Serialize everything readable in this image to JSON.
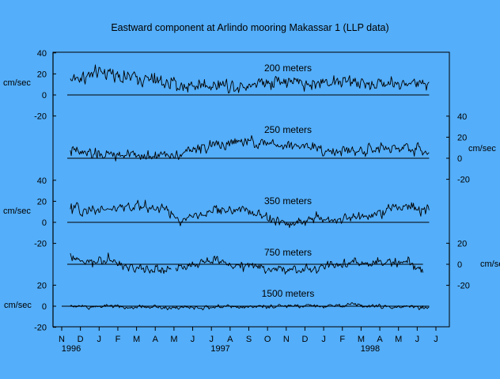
{
  "colors": {
    "background": "#54aef9",
    "ink": "#000000"
  },
  "chart_data": {
    "type": "line",
    "title": "Eastward component at Arlindo mooring Makassar 1 (LLP data)",
    "x_range": [
      "1996-11-01",
      "1998-07-01"
    ],
    "month_ticks": [
      "N",
      "D",
      "J",
      "F",
      "M",
      "A",
      "M",
      "J",
      "J",
      "A",
      "S",
      "O",
      "N",
      "D",
      "J",
      "F",
      "M",
      "A",
      "M",
      "J",
      "J"
    ],
    "year_labels": [
      {
        "label": "1996",
        "date": "1996-11-01"
      },
      {
        "label": "1997",
        "date": "1997-07-01"
      },
      {
        "label": "1998",
        "date": "1998-03-01"
      }
    ],
    "unit": "cm/sec",
    "panels": [
      {
        "name": "200 meters",
        "axis_side": "left",
        "ticks": [
          40,
          20,
          0,
          -20
        ],
        "unit_label": "cm/sec",
        "zero_line": [
          "1996-11-10",
          "1998-06-20"
        ],
        "segments": [
          {
            "start": "1996-11-15",
            "end": "1998-06-20",
            "knots": [
              [
                "1996-11-15",
                15
              ],
              [
                "1996-12-15",
                18
              ],
              [
                "1997-01-15",
                22
              ],
              [
                "1997-02-15",
                17
              ],
              [
                "1997-03-15",
                15
              ],
              [
                "1997-04-15",
                12
              ],
              [
                "1997-05-15",
                8
              ],
              [
                "1997-06-15",
                10
              ],
              [
                "1997-07-15",
                10
              ],
              [
                "1997-08-15",
                9
              ],
              [
                "1997-09-15",
                12
              ],
              [
                "1997-10-15",
                14
              ],
              [
                "1997-11-15",
                12
              ],
              [
                "1997-12-15",
                10
              ],
              [
                "1998-01-15",
                14
              ],
              [
                "1998-02-15",
                12
              ],
              [
                "1998-03-15",
                10
              ],
              [
                "1998-04-15",
                12
              ],
              [
                "1998-05-15",
                10
              ],
              [
                "1998-06-20",
                13
              ]
            ]
          }
        ]
      },
      {
        "name": "250 meters",
        "axis_side": "right",
        "ticks": [
          40,
          20,
          0,
          -20
        ],
        "unit_label": "cm/sec",
        "zero_line": [
          "1996-11-10",
          "1998-06-20"
        ],
        "segments": [
          {
            "start": "1996-11-15",
            "end": "1998-06-20",
            "knots": [
              [
                "1996-11-15",
                7
              ],
              [
                "1996-12-15",
                4
              ],
              [
                "1997-01-15",
                3
              ],
              [
                "1997-02-15",
                3
              ],
              [
                "1997-03-15",
                2
              ],
              [
                "1997-04-15",
                3
              ],
              [
                "1997-05-15",
                5
              ],
              [
                "1997-06-15",
                10
              ],
              [
                "1997-07-15",
                13
              ],
              [
                "1997-08-15",
                15
              ],
              [
                "1997-09-15",
                15
              ],
              [
                "1997-10-15",
                12
              ],
              [
                "1997-11-15",
                12
              ],
              [
                "1997-12-15",
                11
              ],
              [
                "1998-01-15",
                6
              ],
              [
                "1998-02-15",
                7
              ],
              [
                "1998-03-15",
                8
              ],
              [
                "1998-04-15",
                9
              ],
              [
                "1998-05-15",
                10
              ],
              [
                "1998-06-20",
                6
              ]
            ]
          }
        ]
      },
      {
        "name": "350 meters",
        "axis_side": "left",
        "ticks": [
          40,
          20,
          0,
          -20
        ],
        "unit_label": "cm/sec",
        "zero_line": [
          "1996-11-10",
          "1998-06-20"
        ],
        "segments": [
          {
            "start": "1996-11-15",
            "end": "1998-06-20",
            "knots": [
              [
                "1996-11-15",
                12
              ],
              [
                "1996-12-15",
                12
              ],
              [
                "1997-01-15",
                13
              ],
              [
                "1997-02-15",
                14
              ],
              [
                "1997-03-15",
                15
              ],
              [
                "1997-04-15",
                14
              ],
              [
                "1997-05-15",
                0
              ],
              [
                "1997-06-15",
                8
              ],
              [
                "1997-07-15",
                12
              ],
              [
                "1997-08-15",
                12
              ],
              [
                "1997-09-15",
                8
              ],
              [
                "1997-10-15",
                0
              ],
              [
                "1997-11-15",
                0
              ],
              [
                "1997-12-15",
                3
              ],
              [
                "1998-01-15",
                3
              ],
              [
                "1998-02-15",
                3
              ],
              [
                "1998-03-15",
                8
              ],
              [
                "1998-04-15",
                12
              ],
              [
                "1998-05-15",
                16
              ],
              [
                "1998-06-20",
                10
              ]
            ]
          }
        ]
      },
      {
        "name": "750 meters",
        "axis_side": "right",
        "ticks": [
          20,
          0,
          -20
        ],
        "unit_label": "cm/sec",
        "zero_line": [
          "1996-11-10",
          "1998-06-10"
        ],
        "segments": [
          {
            "start": "1996-11-15",
            "end": "1997-04-28",
            "knots": [
              [
                "1996-11-15",
                7
              ],
              [
                "1996-12-10",
                0
              ],
              [
                "1997-01-15",
                5
              ],
              [
                "1997-02-15",
                -3
              ],
              [
                "1997-03-15",
                -4
              ],
              [
                "1997-04-28",
                -6
              ]
            ]
          },
          {
            "start": "1997-05-05",
            "end": "1997-09-30",
            "knots": [
              [
                "1997-05-05",
                -5
              ],
              [
                "1997-06-15",
                1
              ],
              [
                "1997-07-15",
                3
              ],
              [
                "1997-08-15",
                -2
              ],
              [
                "1997-09-30",
                -3
              ]
            ]
          },
          {
            "start": "1997-10-01",
            "end": "1998-06-10",
            "knots": [
              [
                "1997-10-01",
                -4
              ],
              [
                "1997-11-15",
                -6
              ],
              [
                "1997-12-15",
                -4
              ],
              [
                "1998-01-15",
                -2
              ],
              [
                "1998-02-15",
                2
              ],
              [
                "1998-03-15",
                0
              ],
              [
                "1998-04-15",
                2
              ],
              [
                "1998-05-15",
                3
              ],
              [
                "1998-06-10",
                -7
              ]
            ]
          }
        ]
      },
      {
        "name": "1500 meters",
        "axis_side": "left",
        "ticks": [
          20,
          0,
          -20
        ],
        "unit_label": "cm/sec",
        "zero_line": [
          "1996-11-01",
          "1998-06-20"
        ],
        "segments": [
          {
            "start": "1996-11-15",
            "end": "1998-06-20",
            "knots": [
              [
                "1996-11-15",
                0
              ],
              [
                "1996-12-15",
                -1
              ],
              [
                "1997-01-15",
                1
              ],
              [
                "1997-02-15",
                -1
              ],
              [
                "1997-03-15",
                0
              ],
              [
                "1997-04-15",
                -1
              ],
              [
                "1997-05-15",
                -1
              ],
              [
                "1997-06-15",
                -2
              ],
              [
                "1997-07-15",
                0
              ],
              [
                "1997-08-15",
                -1
              ],
              [
                "1997-09-15",
                0
              ],
              [
                "1997-10-15",
                0
              ],
              [
                "1997-11-15",
                0
              ],
              [
                "1997-12-15",
                0
              ],
              [
                "1998-01-15",
                0
              ],
              [
                "1998-02-15",
                2
              ],
              [
                "1998-03-15",
                0
              ],
              [
                "1998-04-15",
                -1
              ],
              [
                "1998-05-15",
                0
              ],
              [
                "1998-06-20",
                -2
              ]
            ]
          }
        ]
      }
    ]
  }
}
